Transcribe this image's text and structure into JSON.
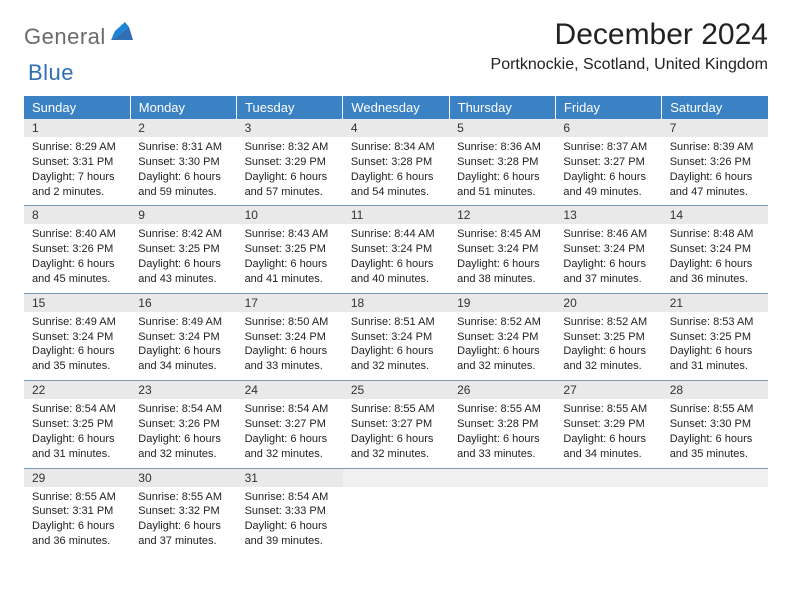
{
  "brand": {
    "part1": "General",
    "part2": "Blue"
  },
  "header": {
    "title": "December 2024",
    "location": "Portknockie, Scotland, United Kingdom"
  },
  "colors": {
    "header_bg": "#3b82c4",
    "header_fg": "#ffffff",
    "daynum_bg": "#e9e9e9",
    "rule": "#7a9bb8",
    "logo_gray": "#6a6a6a",
    "logo_blue": "#2f6fb3"
  },
  "weekdays": [
    "Sunday",
    "Monday",
    "Tuesday",
    "Wednesday",
    "Thursday",
    "Friday",
    "Saturday"
  ],
  "weeks": [
    [
      {
        "n": "1",
        "sr": "8:29 AM",
        "ss": "3:31 PM",
        "dl": "7 hours and 2 minutes."
      },
      {
        "n": "2",
        "sr": "8:31 AM",
        "ss": "3:30 PM",
        "dl": "6 hours and 59 minutes."
      },
      {
        "n": "3",
        "sr": "8:32 AM",
        "ss": "3:29 PM",
        "dl": "6 hours and 57 minutes."
      },
      {
        "n": "4",
        "sr": "8:34 AM",
        "ss": "3:28 PM",
        "dl": "6 hours and 54 minutes."
      },
      {
        "n": "5",
        "sr": "8:36 AM",
        "ss": "3:28 PM",
        "dl": "6 hours and 51 minutes."
      },
      {
        "n": "6",
        "sr": "8:37 AM",
        "ss": "3:27 PM",
        "dl": "6 hours and 49 minutes."
      },
      {
        "n": "7",
        "sr": "8:39 AM",
        "ss": "3:26 PM",
        "dl": "6 hours and 47 minutes."
      }
    ],
    [
      {
        "n": "8",
        "sr": "8:40 AM",
        "ss": "3:26 PM",
        "dl": "6 hours and 45 minutes."
      },
      {
        "n": "9",
        "sr": "8:42 AM",
        "ss": "3:25 PM",
        "dl": "6 hours and 43 minutes."
      },
      {
        "n": "10",
        "sr": "8:43 AM",
        "ss": "3:25 PM",
        "dl": "6 hours and 41 minutes."
      },
      {
        "n": "11",
        "sr": "8:44 AM",
        "ss": "3:24 PM",
        "dl": "6 hours and 40 minutes."
      },
      {
        "n": "12",
        "sr": "8:45 AM",
        "ss": "3:24 PM",
        "dl": "6 hours and 38 minutes."
      },
      {
        "n": "13",
        "sr": "8:46 AM",
        "ss": "3:24 PM",
        "dl": "6 hours and 37 minutes."
      },
      {
        "n": "14",
        "sr": "8:48 AM",
        "ss": "3:24 PM",
        "dl": "6 hours and 36 minutes."
      }
    ],
    [
      {
        "n": "15",
        "sr": "8:49 AM",
        "ss": "3:24 PM",
        "dl": "6 hours and 35 minutes."
      },
      {
        "n": "16",
        "sr": "8:49 AM",
        "ss": "3:24 PM",
        "dl": "6 hours and 34 minutes."
      },
      {
        "n": "17",
        "sr": "8:50 AM",
        "ss": "3:24 PM",
        "dl": "6 hours and 33 minutes."
      },
      {
        "n": "18",
        "sr": "8:51 AM",
        "ss": "3:24 PM",
        "dl": "6 hours and 32 minutes."
      },
      {
        "n": "19",
        "sr": "8:52 AM",
        "ss": "3:24 PM",
        "dl": "6 hours and 32 minutes."
      },
      {
        "n": "20",
        "sr": "8:52 AM",
        "ss": "3:25 PM",
        "dl": "6 hours and 32 minutes."
      },
      {
        "n": "21",
        "sr": "8:53 AM",
        "ss": "3:25 PM",
        "dl": "6 hours and 31 minutes."
      }
    ],
    [
      {
        "n": "22",
        "sr": "8:54 AM",
        "ss": "3:25 PM",
        "dl": "6 hours and 31 minutes."
      },
      {
        "n": "23",
        "sr": "8:54 AM",
        "ss": "3:26 PM",
        "dl": "6 hours and 32 minutes."
      },
      {
        "n": "24",
        "sr": "8:54 AM",
        "ss": "3:27 PM",
        "dl": "6 hours and 32 minutes."
      },
      {
        "n": "25",
        "sr": "8:55 AM",
        "ss": "3:27 PM",
        "dl": "6 hours and 32 minutes."
      },
      {
        "n": "26",
        "sr": "8:55 AM",
        "ss": "3:28 PM",
        "dl": "6 hours and 33 minutes."
      },
      {
        "n": "27",
        "sr": "8:55 AM",
        "ss": "3:29 PM",
        "dl": "6 hours and 34 minutes."
      },
      {
        "n": "28",
        "sr": "8:55 AM",
        "ss": "3:30 PM",
        "dl": "6 hours and 35 minutes."
      }
    ],
    [
      {
        "n": "29",
        "sr": "8:55 AM",
        "ss": "3:31 PM",
        "dl": "6 hours and 36 minutes."
      },
      {
        "n": "30",
        "sr": "8:55 AM",
        "ss": "3:32 PM",
        "dl": "6 hours and 37 minutes."
      },
      {
        "n": "31",
        "sr": "8:54 AM",
        "ss": "3:33 PM",
        "dl": "6 hours and 39 minutes."
      },
      null,
      null,
      null,
      null
    ]
  ],
  "labels": {
    "sunrise": "Sunrise: ",
    "sunset": "Sunset: ",
    "daylight": "Daylight: "
  }
}
